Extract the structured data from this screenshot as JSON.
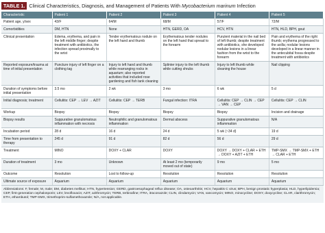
{
  "title": {
    "label": "TABLE 1.",
    "text": "Clinical Characteristics, Diagnosis, and Management of Patients With",
    "italic": "Mycobacterium marinum",
    "text_end": "Infection"
  },
  "table": {
    "header": [
      "Characteristic",
      "Patient 1",
      "Patient 2",
      "Patient 3",
      "Patient 4",
      "Patient 5"
    ],
    "rows": [
      [
        "Patient age, y/sex",
        "43/F",
        "64/M",
        "68/M",
        "57/F",
        "72/M"
      ],
      [
        "Comorbidities",
        "DM, HTN",
        "None",
        "HTN, GERD, OA",
        "HCV, HTN",
        "HTN, HLD, BPH, gout"
      ],
      [
        "Clinical presentation",
        "Edema, erythema, and pain in the left middle finger; despite treatment with antibiotics, the infection spread proximally to the wrist",
        "Tender erythematous nodule on the left hand and thumb",
        "Erythematous tender nodules on the left hand that spread to the forearm",
        "Purulent material in the nail bed of left thumb; despite treatment with antibiotics, she developed nodular lesions in a linear fashion from the wrist to the forearm",
        "Pain and erythema of the right thumb; erythema progressed to the axilla; nodular lesions developed in a linear manner in the antecubital fossa despite treatment with antibiotics"
      ],
      [
        "Reported exposure/trauma at time of initial presentation",
        "Puncture injury of left finger on a clothing tag",
        "Injury to left hand and thumb while rearranging rocks in aquarium; also reported activities that included rose gardening and fish tank cleaning",
        "Splinter injury to the left thumb while cutting shrubs",
        "Injury to left thumb while cleaning the house",
        "Nail clipping"
      ],
      [
        "Duration of symptoms before initial presentation",
        "3.5 mo",
        "2 wk",
        "3 mo",
        "6 wk",
        "5 d"
      ],
      [
        "Initial diagnosis; treatment",
        "Cellulitis: CEP → LEV → AZIT",
        "Cellulitis: CEP → TERB",
        "Fungal infection: ITRA",
        "Cellulitis: CEP → CLIN → CEP → VAN → CEP",
        "Cellulitis: CEP → CLIN"
      ],
      [
        "Workup",
        "Biopsy",
        "Biopsy",
        "Biopsy",
        "Biopsy",
        "Incision and drainage"
      ],
      [
        "Biopsy results",
        "Suppurative granulomatous inflammation with necrosis",
        "Neutrophilic and granulomatous inflammation",
        "Dermal abscess",
        "Suppurative granulomatous inflammation",
        "N/A"
      ],
      [
        "Incubation period",
        "28 d",
        "16 d",
        "24 d",
        "5 wk (~34 d)",
        "19 d"
      ],
      [
        "Time from presentation to therapy",
        "245 d",
        "91 d",
        "82 d",
        "56 d",
        "29 d"
      ],
      [
        "Treatment",
        "MINO",
        "DOXY + CLAR",
        "DOXY",
        "DOXY → DOXY + CLAR + ETH → DOXY + AZIT + ETH",
        "TMP-SMX → TMP-SMX + ETH → CLAR + ETH"
      ],
      [
        "Duration of treatment",
        "3 mo",
        "Unknown",
        "At least 2 mo (temporarily moved out of state)",
        "9 mo",
        "5 mo"
      ],
      [
        "Outcome",
        "Resolution",
        "Lost to follow-up",
        "Resolution",
        "Resolution",
        "Resolution"
      ],
      [
        "Ultimate source of exposure",
        "Aquarium",
        "Aquarium",
        "Aquarium",
        "Aquarium",
        "Aquarium"
      ]
    ]
  },
  "footnote": "Abbreviations: F, female; M, male; DM, diabetes mellitus; HTN, hypertension; GERD, gastroesophageal reflux disease; OA, osteoarthritis; HCV, hepatitis C virus; BPH, benign prostatic hyperplasia; HLD, hyperlipidemia; CEP, first-generation cephalosporin; LEV, levofloxacin; AZIT, azithromycin; TERB, terbinafine; ITRA, itraconazole; CLIN, clindamycin; VAN, vancomycin; MINO, minocycline; DOXY, doxycycline; CLAR, clarithromycin; ETH, ethambutol; TMP-SMX, trimethoprim-sulfamethoxazole; N/A, not applicable."
}
